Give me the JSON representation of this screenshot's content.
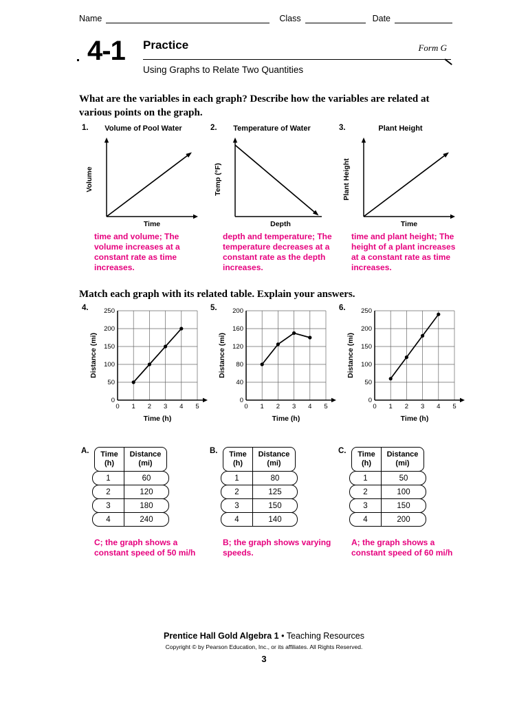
{
  "colors": {
    "answer_pink": "#e6007e"
  },
  "top_fields": {
    "name_label": "Name",
    "class_label": "Class",
    "date_label": "Date"
  },
  "header": {
    "lesson_number": "4-1",
    "title": "Practice",
    "form_label": "Form G",
    "subtitle": "Using Graphs to Relate Two Quantities"
  },
  "intro_text": "What are the variables in each graph? Describe how the variables are related at various points on the graph.",
  "qual_graphs": [
    {
      "number": "1.",
      "title": "Volume of Pool Water",
      "ylabel": "Volume",
      "xlabel": "Time",
      "trend": "increasing",
      "answer": "time and volume; The volume increases at a constant rate as time increases."
    },
    {
      "number": "2.",
      "title": "Temperature of Water",
      "ylabel": "Temp (°F)",
      "xlabel": "Depth",
      "trend": "decreasing",
      "answer": "depth and temperature; The temperature decreases at a constant rate as the depth increases."
    },
    {
      "number": "3.",
      "title": "Plant Height",
      "ylabel": "Plant Height",
      "xlabel": "Time",
      "trend": "increasing",
      "answer": "time and plant height; The height of a plant increases at a constant rate as time increases."
    }
  ],
  "match_instruction": "Match each graph with its related table. Explain your answers.",
  "chart_data": [
    {
      "type": "line",
      "number": "4.",
      "xlabel": "Time (h)",
      "ylabel": "Distance (mi)",
      "x": [
        1,
        2,
        3,
        4
      ],
      "y": [
        50,
        100,
        150,
        200
      ],
      "xticks": [
        0,
        1,
        2,
        3,
        4,
        5
      ],
      "yticks": [
        0,
        50,
        100,
        150,
        200,
        250
      ],
      "xlim": [
        0,
        5
      ],
      "ylim": [
        0,
        250
      ],
      "grid": true
    },
    {
      "type": "line",
      "number": "5.",
      "xlabel": "Time (h)",
      "ylabel": "Distance (mi)",
      "x": [
        1,
        2,
        3,
        4
      ],
      "y": [
        80,
        125,
        150,
        140
      ],
      "xticks": [
        0,
        1,
        2,
        3,
        4,
        5
      ],
      "yticks": [
        0,
        40,
        80,
        120,
        160,
        200
      ],
      "xlim": [
        0,
        5
      ],
      "ylim": [
        0,
        200
      ],
      "grid": true
    },
    {
      "type": "line",
      "number": "6.",
      "xlabel": "Time (h)",
      "ylabel": "Distance (mi)",
      "x": [
        1,
        2,
        3,
        4
      ],
      "y": [
        60,
        120,
        180,
        240
      ],
      "xticks": [
        0,
        1,
        2,
        3,
        4,
        5
      ],
      "yticks": [
        0,
        50,
        100,
        150,
        200,
        250
      ],
      "xlim": [
        0,
        5
      ],
      "ylim": [
        0,
        250
      ],
      "grid": true
    }
  ],
  "tables": [
    {
      "letter": "A.",
      "col1_header": [
        "Time",
        "(h)"
      ],
      "col2_header": [
        "Distance",
        "(mi)"
      ],
      "rows": [
        [
          "1",
          "60"
        ],
        [
          "2",
          "120"
        ],
        [
          "3",
          "180"
        ],
        [
          "4",
          "240"
        ]
      ],
      "answer": "C; the graph shows a constant speed of 50 mi/h"
    },
    {
      "letter": "B.",
      "col1_header": [
        "Time",
        "(h)"
      ],
      "col2_header": [
        "Distance",
        "(mi)"
      ],
      "rows": [
        [
          "1",
          "80"
        ],
        [
          "2",
          "125"
        ],
        [
          "3",
          "150"
        ],
        [
          "4",
          "140"
        ]
      ],
      "answer": "B; the graph shows varying speeds."
    },
    {
      "letter": "C.",
      "col1_header": [
        "Time",
        "(h)"
      ],
      "col2_header": [
        "Distance",
        "(mi)"
      ],
      "rows": [
        [
          "1",
          "50"
        ],
        [
          "2",
          "100"
        ],
        [
          "3",
          "150"
        ],
        [
          "4",
          "200"
        ]
      ],
      "answer": "A; the graph shows a constant speed of 60 mi/h"
    }
  ],
  "footer": {
    "series_title": "Prentice Hall Gold Algebra 1",
    "separator": "•",
    "series_rest": "Teaching Resources",
    "copyright": "Copyright © by Pearson Education, Inc., or its affiliates.  All Rights Reserved.",
    "page_number": "3"
  }
}
